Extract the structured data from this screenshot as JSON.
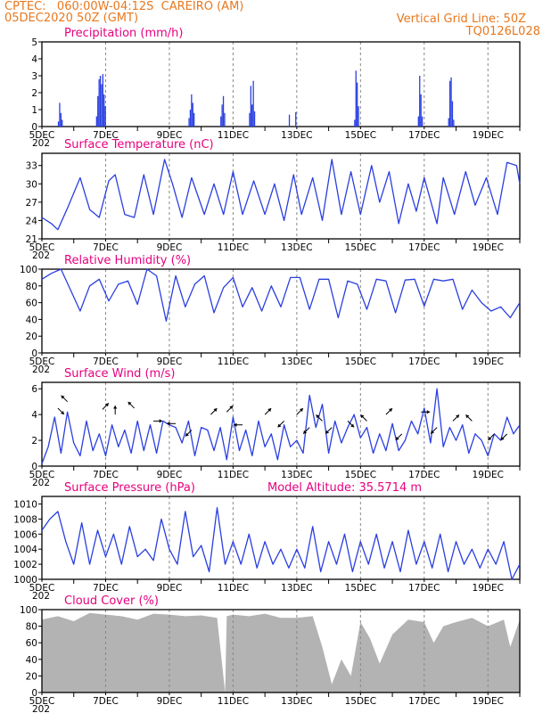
{
  "header": {
    "line1_left": "CPTEC:   060:00W-04:12S  CAREIRO (AM)",
    "line2_left": "05DEC2020 50Z (GMT)",
    "line2_right": "Vertical Grid Line: 50Z",
    "line3_right": "TQ0126L028"
  },
  "colors": {
    "header": "#e8781e",
    "title": "#e6007e",
    "series": "#2a3fe0",
    "cloud": "#b3b3b3",
    "grid": "#888888"
  },
  "x_axis": {
    "labels": [
      "5DEC",
      "7DEC",
      "9DEC",
      "11DEC",
      "13DEC",
      "15DEC",
      "17DEC",
      "19DEC"
    ],
    "label_days": [
      5,
      7,
      9,
      11,
      13,
      15,
      17,
      19
    ],
    "range_days": [
      5,
      20
    ],
    "stub_label": "202"
  },
  "chart_data": [
    {
      "type": "bar",
      "title": "Precipitation (mm/h)",
      "ylim": [
        0,
        5
      ],
      "yticks": [
        "0",
        "1",
        "2",
        "3",
        "4",
        "5"
      ],
      "events": [
        {
          "day": 5.5,
          "values": [
            0.3,
            1.4,
            0.8,
            0.4
          ]
        },
        {
          "day": 6.7,
          "values": [
            0.6,
            1.8,
            2.8,
            3.0,
            2.5,
            3.1,
            1.9,
            1.2
          ]
        },
        {
          "day": 9.6,
          "values": [
            0.5,
            1.0,
            1.9,
            1.4,
            0.8
          ]
        },
        {
          "day": 10.6,
          "values": [
            0.6,
            1.3,
            1.8,
            0.8
          ]
        },
        {
          "day": 11.5,
          "values": [
            0.8,
            2.4,
            1.3,
            2.7,
            0.9
          ]
        },
        {
          "day": 12.75,
          "values": [
            0.7
          ]
        },
        {
          "day": 12.95,
          "values": [
            0.85
          ]
        },
        {
          "day": 14.8,
          "values": [
            0.4,
            3.3,
            2.6,
            1.2
          ]
        },
        {
          "day": 16.8,
          "values": [
            0.6,
            3.0,
            1.9,
            0.6
          ]
        },
        {
          "day": 17.75,
          "values": [
            0.5,
            2.7,
            2.9,
            1.5,
            0.4
          ]
        }
      ]
    },
    {
      "type": "line",
      "title": "Surface Temperature (nC)",
      "ylim": [
        21,
        35
      ],
      "yticks": [
        "21",
        "24",
        "27",
        "30",
        "33"
      ],
      "x": [
        5.0,
        5.3,
        5.5,
        5.8,
        6.2,
        6.5,
        6.8,
        7.1,
        7.3,
        7.6,
        7.9,
        8.2,
        8.5,
        8.85,
        9.1,
        9.4,
        9.7,
        10.1,
        10.4,
        10.7,
        11.0,
        11.3,
        11.65,
        12.0,
        12.3,
        12.6,
        12.9,
        13.15,
        13.5,
        13.8,
        14.1,
        14.4,
        14.7,
        15.0,
        15.35,
        15.6,
        15.9,
        16.2,
        16.5,
        16.75,
        17.0,
        17.4,
        17.6,
        17.95,
        18.3,
        18.6,
        18.95,
        19.3,
        19.6,
        19.9,
        20.0
      ],
      "y": [
        24.5,
        23.5,
        22.5,
        26,
        31,
        25.8,
        24.5,
        30.5,
        31.5,
        25,
        24.5,
        31.5,
        25,
        34,
        30,
        24.5,
        31,
        25,
        30,
        25,
        32,
        25,
        30.5,
        25,
        30,
        24,
        31.5,
        25,
        31,
        24,
        34,
        25,
        32,
        25,
        33,
        27,
        32,
        23.5,
        30,
        25.5,
        31,
        23.5,
        31,
        25,
        32,
        26.5,
        31,
        25,
        33.5,
        33,
        30
      ]
    },
    {
      "type": "line",
      "title": "Relative Humidity (%)",
      "ylim": [
        0,
        100
      ],
      "yticks": [
        "0",
        "20",
        "40",
        "60",
        "80",
        "100"
      ],
      "x": [
        5.0,
        5.3,
        5.6,
        5.9,
        6.2,
        6.5,
        6.8,
        7.1,
        7.4,
        7.7,
        8.0,
        8.3,
        8.6,
        8.9,
        9.2,
        9.5,
        9.8,
        10.1,
        10.4,
        10.7,
        11.0,
        11.3,
        11.6,
        11.9,
        12.2,
        12.5,
        12.8,
        13.1,
        13.4,
        13.7,
        14.0,
        14.3,
        14.6,
        14.9,
        15.2,
        15.5,
        15.8,
        16.1,
        16.4,
        16.7,
        17.0,
        17.3,
        17.6,
        17.9,
        18.2,
        18.5,
        18.8,
        19.1,
        19.4,
        19.7,
        20.0
      ],
      "y": [
        88,
        95,
        100,
        75,
        50,
        80,
        88,
        62,
        82,
        86,
        58,
        100,
        92,
        38,
        92,
        55,
        82,
        92,
        48,
        78,
        90,
        55,
        78,
        50,
        80,
        55,
        90,
        90,
        52,
        88,
        88,
        42,
        86,
        82,
        52,
        88,
        86,
        48,
        87,
        88,
        56,
        88,
        86,
        88,
        52,
        75,
        60,
        50,
        55,
        42,
        60
      ]
    },
    {
      "type": "line",
      "title": "Surface Wind (m/s)",
      "ylim": [
        0,
        6.5
      ],
      "yticks": [
        "0",
        "2",
        "4",
        "6"
      ],
      "x": [
        5.0,
        5.2,
        5.4,
        5.6,
        5.8,
        6.0,
        6.2,
        6.4,
        6.6,
        6.8,
        7.0,
        7.2,
        7.4,
        7.6,
        7.8,
        8.0,
        8.2,
        8.4,
        8.6,
        8.8,
        9.0,
        9.2,
        9.4,
        9.6,
        9.8,
        10.0,
        10.2,
        10.4,
        10.6,
        10.8,
        11.0,
        11.2,
        11.4,
        11.6,
        11.8,
        12.0,
        12.2,
        12.4,
        12.6,
        12.8,
        13.0,
        13.2,
        13.4,
        13.6,
        13.8,
        14.0,
        14.2,
        14.4,
        14.6,
        14.8,
        15.0,
        15.2,
        15.4,
        15.6,
        15.8,
        16.0,
        16.2,
        16.4,
        16.6,
        16.8,
        17.0,
        17.2,
        17.4,
        17.6,
        17.8,
        18.0,
        18.2,
        18.4,
        18.6,
        18.8,
        19.0,
        19.2,
        19.4,
        19.6,
        19.8,
        20.0
      ],
      "y": [
        0.2,
        1.5,
        3.8,
        1.0,
        4.2,
        1.8,
        0.8,
        3.5,
        1.2,
        2.5,
        0.8,
        3.2,
        1.5,
        2.8,
        1.0,
        3.5,
        1.2,
        3.2,
        1.0,
        3.5,
        3.2,
        3.0,
        1.8,
        3.5,
        0.8,
        3.0,
        2.8,
        1.2,
        3.0,
        0.5,
        3.8,
        1.2,
        2.8,
        0.8,
        3.5,
        1.5,
        2.5,
        0.5,
        3.2,
        1.5,
        2.0,
        1.0,
        5.5,
        3.0,
        4.8,
        1.0,
        3.5,
        1.8,
        3.0,
        4.0,
        2.2,
        3.0,
        1.0,
        2.5,
        1.2,
        3.3,
        1.2,
        2.0,
        3.5,
        2.5,
        4.5,
        1.8,
        6.0,
        1.5,
        3.0,
        2.0,
        3.2,
        1.0,
        2.5,
        2.0,
        0.8,
        2.5,
        2.0,
        3.8,
        2.5,
        3.2
      ],
      "vectors": [
        {
          "day": 5.5,
          "dir": "SE",
          "mag": 4.5
        },
        {
          "day": 5.8,
          "dir": "NW",
          "mag": 5.0
        },
        {
          "day": 6.9,
          "dir": "NE",
          "mag": 4.4
        },
        {
          "day": 7.3,
          "dir": "N",
          "mag": 4.0
        },
        {
          "day": 7.9,
          "dir": "NW",
          "mag": 4.5
        },
        {
          "day": 8.5,
          "dir": "E",
          "mag": 3.5
        },
        {
          "day": 9.2,
          "dir": "W",
          "mag": 3.3
        },
        {
          "day": 9.7,
          "dir": "SW",
          "mag": 2.8
        },
        {
          "day": 10.3,
          "dir": "NE",
          "mag": 4.0
        },
        {
          "day": 10.8,
          "dir": "NE",
          "mag": 4.2
        },
        {
          "day": 11.3,
          "dir": "W",
          "mag": 3.2
        },
        {
          "day": 12.0,
          "dir": "NE",
          "mag": 4.0
        },
        {
          "day": 12.6,
          "dir": "SW",
          "mag": 3.5
        },
        {
          "day": 13.0,
          "dir": "NE",
          "mag": 4.0
        },
        {
          "day": 13.4,
          "dir": "SW",
          "mag": 3.0
        },
        {
          "day": 13.8,
          "dir": "NW",
          "mag": 3.5
        },
        {
          "day": 14.1,
          "dir": "SW",
          "mag": 3.0
        },
        {
          "day": 14.6,
          "dir": "SE",
          "mag": 3.5
        },
        {
          "day": 15.2,
          "dir": "NW",
          "mag": 3.5
        },
        {
          "day": 15.8,
          "dir": "NE",
          "mag": 4.0
        },
        {
          "day": 16.3,
          "dir": "SW",
          "mag": 2.5
        },
        {
          "day": 16.9,
          "dir": "E",
          "mag": 4.2
        },
        {
          "day": 17.4,
          "dir": "SW",
          "mag": 3.0
        },
        {
          "day": 17.9,
          "dir": "NE",
          "mag": 3.5
        },
        {
          "day": 18.5,
          "dir": "NW",
          "mag": 3.5
        },
        {
          "day": 19.2,
          "dir": "SW",
          "mag": 2.5
        },
        {
          "day": 19.6,
          "dir": "SW",
          "mag": 2.5
        }
      ]
    },
    {
      "type": "line",
      "title": "Surface Pressure (hPa)",
      "annotation": "Model Altitude: 35.5714 m",
      "ylim": [
        1000,
        1011
      ],
      "yticks": [
        "1000",
        "1002",
        "1004",
        "1006",
        "1008",
        "1010"
      ],
      "x": [
        5.0,
        5.25,
        5.5,
        5.75,
        6.0,
        6.25,
        6.5,
        6.75,
        7.0,
        7.25,
        7.5,
        7.75,
        8.0,
        8.25,
        8.5,
        8.75,
        9.0,
        9.25,
        9.5,
        9.75,
        10.0,
        10.25,
        10.5,
        10.75,
        11.0,
        11.25,
        11.5,
        11.75,
        12.0,
        12.25,
        12.5,
        12.75,
        13.0,
        13.25,
        13.5,
        13.75,
        14.0,
        14.25,
        14.5,
        14.75,
        15.0,
        15.25,
        15.5,
        15.75,
        16.0,
        16.25,
        16.5,
        16.75,
        17.0,
        17.25,
        17.5,
        17.75,
        18.0,
        18.25,
        18.5,
        18.75,
        19.0,
        19.25,
        19.5,
        19.75,
        20.0
      ],
      "y": [
        1006.5,
        1008,
        1009,
        1005,
        1002,
        1007.5,
        1002,
        1006.5,
        1003,
        1006,
        1002,
        1007,
        1003,
        1004,
        1002.5,
        1008,
        1004,
        1002,
        1009,
        1003,
        1004.5,
        1001,
        1009.5,
        1002,
        1005,
        1002,
        1006,
        1001.5,
        1005,
        1002,
        1004,
        1001.5,
        1004,
        1001.5,
        1007,
        1001,
        1005,
        1002,
        1006,
        1001,
        1005,
        1002,
        1006,
        1001.5,
        1005,
        1001,
        1006.5,
        1002,
        1005,
        1001.5,
        1006,
        1001,
        1005,
        1002,
        1004,
        1001.5,
        1004,
        1002,
        1005,
        1000,
        1002
      ]
    },
    {
      "type": "area",
      "title": "Cloud Cover (%)",
      "ylim": [
        0,
        100
      ],
      "yticks": [
        "0",
        "20",
        "40",
        "60",
        "80",
        "100"
      ],
      "x": [
        5.0,
        5.5,
        6.0,
        6.5,
        7.0,
        7.5,
        8.0,
        8.5,
        9.0,
        9.5,
        10.0,
        10.5,
        10.75,
        10.8,
        11.0,
        11.5,
        12.0,
        12.5,
        13.0,
        13.5,
        13.8,
        14.1,
        14.4,
        14.7,
        15.0,
        15.3,
        15.6,
        16.0,
        16.5,
        17.0,
        17.3,
        17.6,
        18.0,
        18.5,
        19.0,
        19.5,
        19.7,
        20.0
      ],
      "y": [
        88,
        92,
        86,
        96,
        94,
        92,
        88,
        95,
        94,
        92,
        93,
        90,
        0,
        92,
        94,
        92,
        95,
        90,
        90,
        92,
        55,
        10,
        40,
        20,
        85,
        65,
        35,
        70,
        88,
        85,
        60,
        80,
        85,
        90,
        80,
        88,
        55,
        88
      ]
    }
  ]
}
